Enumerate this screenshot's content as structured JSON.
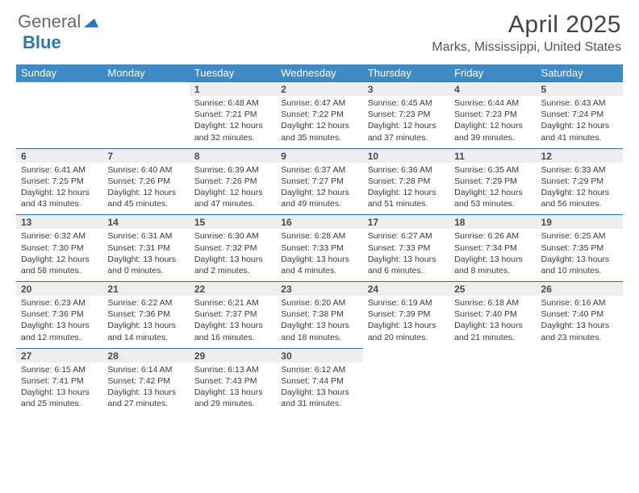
{
  "brand": {
    "part1": "General",
    "part2": "Blue",
    "triangle_color": "#2d76b5"
  },
  "header": {
    "title": "April 2025",
    "subtitle": "Marks, Mississippi, United States"
  },
  "colors": {
    "header_bg": "#3d8ac7",
    "header_fg": "#ffffff",
    "num_bg": "#eeeeee",
    "rule": "#2d6fa8",
    "text": "#3b3b3b"
  },
  "day_names": [
    "Sunday",
    "Monday",
    "Tuesday",
    "Wednesday",
    "Thursday",
    "Friday",
    "Saturday"
  ],
  "weeks": [
    [
      null,
      null,
      {
        "n": "1",
        "sr": "Sunrise: 6:48 AM",
        "ss": "Sunset: 7:21 PM",
        "dl": "Daylight: 12 hours and 32 minutes."
      },
      {
        "n": "2",
        "sr": "Sunrise: 6:47 AM",
        "ss": "Sunset: 7:22 PM",
        "dl": "Daylight: 12 hours and 35 minutes."
      },
      {
        "n": "3",
        "sr": "Sunrise: 6:45 AM",
        "ss": "Sunset: 7:23 PM",
        "dl": "Daylight: 12 hours and 37 minutes."
      },
      {
        "n": "4",
        "sr": "Sunrise: 6:44 AM",
        "ss": "Sunset: 7:23 PM",
        "dl": "Daylight: 12 hours and 39 minutes."
      },
      {
        "n": "5",
        "sr": "Sunrise: 6:43 AM",
        "ss": "Sunset: 7:24 PM",
        "dl": "Daylight: 12 hours and 41 minutes."
      }
    ],
    [
      {
        "n": "6",
        "sr": "Sunrise: 6:41 AM",
        "ss": "Sunset: 7:25 PM",
        "dl": "Daylight: 12 hours and 43 minutes."
      },
      {
        "n": "7",
        "sr": "Sunrise: 6:40 AM",
        "ss": "Sunset: 7:26 PM",
        "dl": "Daylight: 12 hours and 45 minutes."
      },
      {
        "n": "8",
        "sr": "Sunrise: 6:39 AM",
        "ss": "Sunset: 7:26 PM",
        "dl": "Daylight: 12 hours and 47 minutes."
      },
      {
        "n": "9",
        "sr": "Sunrise: 6:37 AM",
        "ss": "Sunset: 7:27 PM",
        "dl": "Daylight: 12 hours and 49 minutes."
      },
      {
        "n": "10",
        "sr": "Sunrise: 6:36 AM",
        "ss": "Sunset: 7:28 PM",
        "dl": "Daylight: 12 hours and 51 minutes."
      },
      {
        "n": "11",
        "sr": "Sunrise: 6:35 AM",
        "ss": "Sunset: 7:29 PM",
        "dl": "Daylight: 12 hours and 53 minutes."
      },
      {
        "n": "12",
        "sr": "Sunrise: 6:33 AM",
        "ss": "Sunset: 7:29 PM",
        "dl": "Daylight: 12 hours and 56 minutes."
      }
    ],
    [
      {
        "n": "13",
        "sr": "Sunrise: 6:32 AM",
        "ss": "Sunset: 7:30 PM",
        "dl": "Daylight: 12 hours and 58 minutes."
      },
      {
        "n": "14",
        "sr": "Sunrise: 6:31 AM",
        "ss": "Sunset: 7:31 PM",
        "dl": "Daylight: 13 hours and 0 minutes."
      },
      {
        "n": "15",
        "sr": "Sunrise: 6:30 AM",
        "ss": "Sunset: 7:32 PM",
        "dl": "Daylight: 13 hours and 2 minutes."
      },
      {
        "n": "16",
        "sr": "Sunrise: 6:28 AM",
        "ss": "Sunset: 7:33 PM",
        "dl": "Daylight: 13 hours and 4 minutes."
      },
      {
        "n": "17",
        "sr": "Sunrise: 6:27 AM",
        "ss": "Sunset: 7:33 PM",
        "dl": "Daylight: 13 hours and 6 minutes."
      },
      {
        "n": "18",
        "sr": "Sunrise: 6:26 AM",
        "ss": "Sunset: 7:34 PM",
        "dl": "Daylight: 13 hours and 8 minutes."
      },
      {
        "n": "19",
        "sr": "Sunrise: 6:25 AM",
        "ss": "Sunset: 7:35 PM",
        "dl": "Daylight: 13 hours and 10 minutes."
      }
    ],
    [
      {
        "n": "20",
        "sr": "Sunrise: 6:23 AM",
        "ss": "Sunset: 7:36 PM",
        "dl": "Daylight: 13 hours and 12 minutes."
      },
      {
        "n": "21",
        "sr": "Sunrise: 6:22 AM",
        "ss": "Sunset: 7:36 PM",
        "dl": "Daylight: 13 hours and 14 minutes."
      },
      {
        "n": "22",
        "sr": "Sunrise: 6:21 AM",
        "ss": "Sunset: 7:37 PM",
        "dl": "Daylight: 13 hours and 16 minutes."
      },
      {
        "n": "23",
        "sr": "Sunrise: 6:20 AM",
        "ss": "Sunset: 7:38 PM",
        "dl": "Daylight: 13 hours and 18 minutes."
      },
      {
        "n": "24",
        "sr": "Sunrise: 6:19 AM",
        "ss": "Sunset: 7:39 PM",
        "dl": "Daylight: 13 hours and 20 minutes."
      },
      {
        "n": "25",
        "sr": "Sunrise: 6:18 AM",
        "ss": "Sunset: 7:40 PM",
        "dl": "Daylight: 13 hours and 21 minutes."
      },
      {
        "n": "26",
        "sr": "Sunrise: 6:16 AM",
        "ss": "Sunset: 7:40 PM",
        "dl": "Daylight: 13 hours and 23 minutes."
      }
    ],
    [
      {
        "n": "27",
        "sr": "Sunrise: 6:15 AM",
        "ss": "Sunset: 7:41 PM",
        "dl": "Daylight: 13 hours and 25 minutes."
      },
      {
        "n": "28",
        "sr": "Sunrise: 6:14 AM",
        "ss": "Sunset: 7:42 PM",
        "dl": "Daylight: 13 hours and 27 minutes."
      },
      {
        "n": "29",
        "sr": "Sunrise: 6:13 AM",
        "ss": "Sunset: 7:43 PM",
        "dl": "Daylight: 13 hours and 29 minutes."
      },
      {
        "n": "30",
        "sr": "Sunrise: 6:12 AM",
        "ss": "Sunset: 7:44 PM",
        "dl": "Daylight: 13 hours and 31 minutes."
      },
      null,
      null,
      null
    ]
  ]
}
